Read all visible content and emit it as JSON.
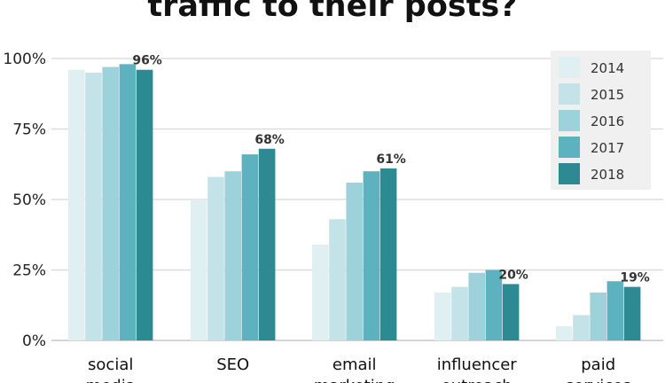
{
  "chart_data": {
    "type": "bar",
    "title": "traffic to their posts?",
    "categories": [
      "social media",
      "SEO",
      "email marketing",
      "influencer outreach",
      "paid services"
    ],
    "category_label_lines": [
      [
        "social",
        "media"
      ],
      [
        "SEO"
      ],
      [
        "email",
        "marketing"
      ],
      [
        "influencer",
        "outreach"
      ],
      [
        "paid",
        "services"
      ]
    ],
    "series": [
      {
        "name": "2014",
        "color": "#dfeff2",
        "values": [
          96,
          50,
          34,
          17,
          5
        ]
      },
      {
        "name": "2015",
        "color": "#c4e3e8",
        "values": [
          95,
          58,
          43,
          19,
          9
        ]
      },
      {
        "name": "2016",
        "color": "#9dd2da",
        "values": [
          97,
          60,
          56,
          24,
          17
        ]
      },
      {
        "name": "2017",
        "color": "#5db2bf",
        "values": [
          98,
          66,
          60,
          25,
          21
        ]
      },
      {
        "name": "2018",
        "color": "#2d8a93",
        "values": [
          96,
          68,
          61,
          20,
          19
        ]
      }
    ],
    "data_labels": [
      "96%",
      "68%",
      "61%",
      "20%",
      "19%"
    ],
    "yticks": [
      {
        "value": 0,
        "label": "0%"
      },
      {
        "value": 25,
        "label": "25%"
      },
      {
        "value": 50,
        "label": "50%"
      },
      {
        "value": 75,
        "label": "75%"
      },
      {
        "value": 100,
        "label": "100%"
      }
    ],
    "ylim": [
      0,
      100
    ],
    "xlabel": "",
    "ylabel": "",
    "grid": true,
    "legend_position": "top-right",
    "colors": {
      "grid": "#dddddd",
      "legend_bg": "#f0f0f0"
    }
  }
}
